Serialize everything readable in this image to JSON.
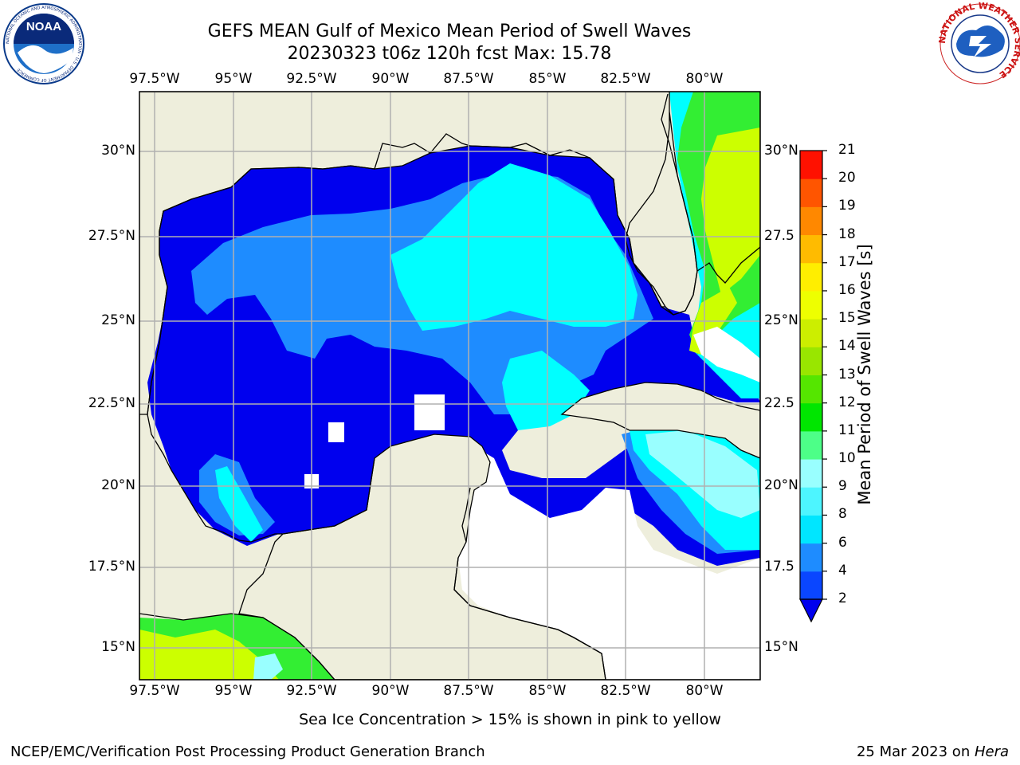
{
  "header": {
    "title_line1": "GEFS MEAN Gulf of Mexico Mean Period of Swell Waves",
    "title_line2": "20230323 t06z 120h fcst   Max: 15.78"
  },
  "axes": {
    "lon_labels": [
      "97.5°W",
      "95°W",
      "92.5°W",
      "90°W",
      "87.5°W",
      "85°W",
      "82.5°W",
      "80°W"
    ],
    "lat_labels_left": [
      "30°N",
      "27.5°N",
      "25°N",
      "22.5°N",
      "20°N",
      "17.5°N",
      "15°N"
    ],
    "lat_labels_right": [
      "30°N",
      "27.5",
      "25°N",
      "22.5",
      "20°N",
      "17.5",
      "15°N"
    ]
  },
  "colorbar": {
    "label": "Mean Period of Swell Waves [s]",
    "ticks": [
      "2",
      "4",
      "6",
      "8",
      "9",
      "10",
      "11",
      "12",
      "13",
      "14",
      "15",
      "16",
      "17",
      "18",
      "19",
      "20",
      "21"
    ],
    "colors": [
      "#0a46ff",
      "#1e8cff",
      "#00e6ff",
      "#4df5ff",
      "#99ffff",
      "#4dff88",
      "#00e600",
      "#55e600",
      "#99e600",
      "#ccee00",
      "#eeff00",
      "#ffee00",
      "#ffbb00",
      "#ff8800",
      "#ff5500",
      "#ff1100"
    ],
    "under_color": "#0000ee"
  },
  "map_colors": {
    "land": "#eeeedc",
    "deep_blue": "#0000ee",
    "mid_blue": "#1e8cff",
    "cyan": "#00ffff",
    "light_cyan": "#99ffff",
    "green": "#33ee33",
    "yellow_green": "#ccff00"
  },
  "footer": {
    "note": "Sea Ice Concentration > 15% is shown in pink to yellow",
    "credit_left": "NCEP/EMC/Verification Post Processing Product Generation Branch",
    "credit_right_date": "25 Mar 2023 on ",
    "credit_right_host": "Hera"
  },
  "logos": {
    "noaa_text": "NOAA",
    "noaa_ring_text": "NATIONAL OCEANIC AND ATMOSPHERIC ADMINISTRATION · U.S. DEPARTMENT OF COMMERCE",
    "nws_ring_text": "NATIONAL WEATHER SERVICE"
  }
}
